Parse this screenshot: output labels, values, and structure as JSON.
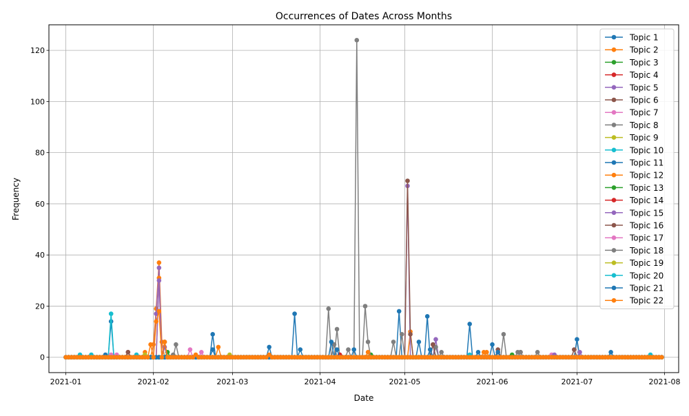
{
  "chart_data": {
    "type": "line",
    "title": "Occurrences of Dates Across Months",
    "xlabel": "Date",
    "ylabel": "Frequency",
    "x_range": [
      "2020-12-26",
      "2021-08-06"
    ],
    "ylim": [
      -6,
      130
    ],
    "grid": true,
    "legend_position": "top-right",
    "x_ticks": [
      {
        "value": "2021-01-01",
        "label": "2021-01"
      },
      {
        "value": "2021-02-01",
        "label": "2021-02"
      },
      {
        "value": "2021-03-01",
        "label": "2021-03"
      },
      {
        "value": "2021-04-01",
        "label": "2021-04"
      },
      {
        "value": "2021-05-01",
        "label": "2021-05"
      },
      {
        "value": "2021-06-01",
        "label": "2021-06"
      },
      {
        "value": "2021-07-01",
        "label": "2021-07"
      },
      {
        "value": "2021-08-01",
        "label": "2021-08"
      }
    ],
    "y_ticks": [
      0,
      20,
      40,
      60,
      80,
      100,
      120
    ],
    "baseline_range": [
      "2021-01-01",
      "2021-07-31"
    ],
    "series": [
      {
        "name": "Topic 1",
        "color": "#1f77b4",
        "points": [
          [
            "2021-01-17",
            14
          ],
          [
            "2021-02-22",
            9
          ],
          [
            "2021-03-23",
            17
          ],
          [
            "2021-04-29",
            18
          ],
          [
            "2021-05-06",
            6
          ],
          [
            "2021-05-09",
            16
          ],
          [
            "2021-05-24",
            13
          ],
          [
            "2021-06-01",
            5
          ],
          [
            "2021-07-01",
            7
          ],
          [
            "2021-07-13",
            2
          ]
        ]
      },
      {
        "name": "Topic 2",
        "color": "#ff7f0e",
        "points": [
          [
            "2021-02-01",
            5
          ],
          [
            "2021-02-02",
            19
          ],
          [
            "2021-02-03",
            37
          ],
          [
            "2021-02-04",
            6
          ],
          [
            "2021-02-24",
            4
          ],
          [
            "2021-05-03",
            10
          ],
          [
            "2021-05-30",
            2
          ]
        ]
      },
      {
        "name": "Topic 3",
        "color": "#2ca02c",
        "points": [
          [
            "2021-02-06",
            2
          ],
          [
            "2021-04-19",
            1
          ]
        ]
      },
      {
        "name": "Topic 4",
        "color": "#d62728",
        "points": [
          [
            "2021-01-23",
            2
          ],
          [
            "2021-06-03",
            2
          ]
        ]
      },
      {
        "name": "Topic 5",
        "color": "#9467bd",
        "points": [
          [
            "2021-02-02",
            17
          ],
          [
            "2021-02-03",
            35
          ],
          [
            "2021-05-02",
            67
          ],
          [
            "2021-05-12",
            7
          ],
          [
            "2021-07-02",
            2
          ]
        ]
      },
      {
        "name": "Topic 6",
        "color": "#8c564b",
        "points": [
          [
            "2021-01-23",
            2
          ],
          [
            "2021-05-02",
            69
          ],
          [
            "2021-05-03",
            9
          ],
          [
            "2021-06-03",
            3
          ],
          [
            "2021-06-30",
            3
          ]
        ]
      },
      {
        "name": "Topic 7",
        "color": "#e377c2",
        "points": [
          [
            "2021-01-19",
            1
          ],
          [
            "2021-02-14",
            3
          ],
          [
            "2021-06-22",
            1
          ]
        ]
      },
      {
        "name": "Topic 8",
        "color": "#7f7f7f",
        "points": [
          [
            "2021-02-09",
            5
          ],
          [
            "2021-04-04",
            19
          ],
          [
            "2021-04-07",
            11
          ],
          [
            "2021-04-14",
            124
          ],
          [
            "2021-04-17",
            20
          ],
          [
            "2021-04-18",
            6
          ],
          [
            "2021-04-27",
            6
          ],
          [
            "2021-04-30",
            9
          ],
          [
            "2021-05-12",
            4
          ],
          [
            "2021-06-05",
            9
          ],
          [
            "2021-06-10",
            2
          ]
        ]
      },
      {
        "name": "Topic 9",
        "color": "#bcbd22",
        "points": [
          [
            "2021-02-28",
            1
          ]
        ]
      },
      {
        "name": "Topic 10",
        "color": "#17becf",
        "points": [
          [
            "2021-01-06",
            1
          ],
          [
            "2021-01-17",
            17
          ],
          [
            "2021-01-26",
            1
          ],
          [
            "2021-07-27",
            1
          ]
        ]
      },
      {
        "name": "Topic 11",
        "color": "#1f77b4",
        "points": [
          [
            "2021-01-15",
            1
          ],
          [
            "2021-03-14",
            4
          ],
          [
            "2021-05-11",
            5
          ]
        ]
      },
      {
        "name": "Topic 12",
        "color": "#ff7f0e",
        "points": [
          [
            "2021-01-29",
            2
          ],
          [
            "2021-02-03",
            31
          ],
          [
            "2021-04-18",
            2
          ],
          [
            "2021-05-29",
            2
          ]
        ]
      },
      {
        "name": "Topic 13",
        "color": "#2ca02c",
        "points": [
          [
            "2021-06-08",
            1
          ]
        ]
      },
      {
        "name": "Topic 14",
        "color": "#d62728",
        "points": [
          [
            "2021-04-08",
            1
          ]
        ]
      },
      {
        "name": "Topic 15",
        "color": "#9467bd",
        "points": [
          [
            "2021-02-03",
            30
          ],
          [
            "2021-02-05",
            4
          ],
          [
            "2021-05-11",
            5
          ],
          [
            "2021-06-23",
            1
          ]
        ]
      },
      {
        "name": "Topic 16",
        "color": "#8c564b",
        "points": [
          [
            "2021-02-05",
            6
          ],
          [
            "2021-05-11",
            5
          ],
          [
            "2021-06-11",
            2
          ]
        ]
      },
      {
        "name": "Topic 17",
        "color": "#e377c2",
        "points": [
          [
            "2021-01-17",
            1
          ],
          [
            "2021-02-18",
            2
          ]
        ]
      },
      {
        "name": "Topic 18",
        "color": "#7f7f7f",
        "points": [
          [
            "2021-02-08",
            1
          ],
          [
            "2021-04-06",
            5
          ],
          [
            "2021-04-11",
            3
          ],
          [
            "2021-05-14",
            2
          ],
          [
            "2021-06-11",
            2
          ],
          [
            "2021-06-17",
            2
          ]
        ]
      },
      {
        "name": "Topic 19",
        "color": "#bcbd22",
        "points": [
          [
            "2021-01-29",
            1
          ]
        ]
      },
      {
        "name": "Topic 20",
        "color": "#17becf",
        "points": [
          [
            "2021-01-10",
            1
          ],
          [
            "2021-05-24",
            1
          ]
        ]
      },
      {
        "name": "Topic 21",
        "color": "#1f77b4",
        "points": [
          [
            "2021-02-22",
            3
          ],
          [
            "2021-03-25",
            3
          ],
          [
            "2021-04-05",
            6
          ],
          [
            "2021-04-07",
            3
          ],
          [
            "2021-04-13",
            3
          ],
          [
            "2021-05-10",
            3
          ],
          [
            "2021-05-27",
            2
          ],
          [
            "2021-06-03",
            2
          ]
        ]
      },
      {
        "name": "Topic 22",
        "color": "#ff7f0e",
        "points": [
          [
            "2021-01-31",
            5
          ],
          [
            "2021-02-02",
            14
          ],
          [
            "2021-02-03",
            18
          ],
          [
            "2021-02-05",
            6
          ],
          [
            "2021-02-16",
            1
          ],
          [
            "2021-03-14",
            1
          ]
        ]
      }
    ]
  }
}
